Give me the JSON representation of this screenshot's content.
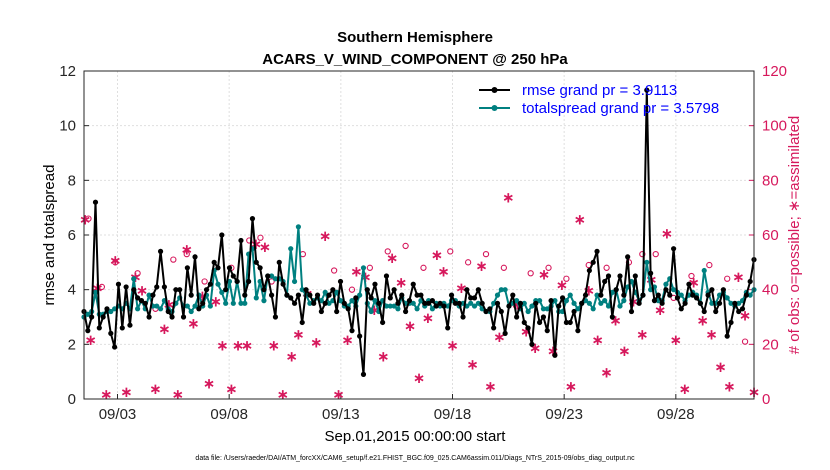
{
  "chart_data": {
    "type": "line",
    "title": "Southern Hemisphere",
    "subtitle": "ACARS_V_WIND_COMPONENT @ 250 hPa",
    "xlabel": "Sep.01,2015 00:00:00 start",
    "ylabel_left": "rmse and totalspread",
    "ylabel_right": "# of obs: o=possible; ∗=assimilated",
    "footnote": "data file: /Users/raeder/DAI/ATM_forcXX/CAM6_setup/f.e21.FHIST_BGC.f09_025.CAM6assim.011/Diags_NTrS_2015-09/obs_diag_output.nc",
    "xlim": [
      1.0,
      31.0
    ],
    "ylim_left": [
      0,
      12
    ],
    "ylim_right": [
      0,
      120
    ],
    "xticks": [
      2.5,
      7.5,
      12.5,
      17.5,
      22.5,
      27.5
    ],
    "xtick_labels": [
      "09/03",
      "09/08",
      "09/13",
      "09/18",
      "09/23",
      "09/28"
    ],
    "yticks_left": [
      0,
      2,
      4,
      6,
      8,
      10,
      12
    ],
    "yticks_right": [
      0,
      20,
      40,
      60,
      80,
      100,
      120
    ],
    "series": [
      {
        "name": "rmse grand pr = 3.9113",
        "axis": "left",
        "color": "#000000",
        "values": [
          3.2,
          2.5,
          3.0,
          7.2,
          2.6,
          3.0,
          3.3,
          2.4,
          1.9,
          4.2,
          2.6,
          4.1,
          2.7,
          4.0,
          3.7,
          3.6,
          3.5,
          3.0,
          3.8,
          4.1,
          5.4,
          4.1,
          3.2,
          3.0,
          4.0,
          4.0,
          3.0,
          4.8,
          3.8,
          5.2,
          3.3,
          3.5,
          4.0,
          4.2,
          5.0,
          4.8,
          6.0,
          4.0,
          4.8,
          4.5,
          4.3,
          5.8,
          3.8,
          4.3,
          6.6,
          5.0,
          4.8,
          4.0,
          4.5,
          3.8,
          3.0,
          5.0,
          4.2,
          3.8,
          3.7,
          3.5,
          3.8,
          2.8,
          4.0,
          3.8,
          3.5,
          3.8,
          3.2,
          3.5,
          3.8,
          4.0,
          3.2,
          4.3,
          3.5,
          3.3,
          2.5,
          3.7,
          2.3,
          0.9,
          4.0,
          3.7,
          4.2,
          3.5,
          2.8,
          4.5,
          3.7,
          4.0,
          3.5,
          3.8,
          3.2,
          3.6,
          4.2,
          3.8,
          3.8,
          3.5,
          3.5,
          3.6,
          3.4,
          3.5,
          3.4,
          2.6,
          3.8,
          3.5,
          3.5,
          3.0,
          4.0,
          3.7,
          3.7,
          4.0,
          3.5,
          3.2,
          3.3,
          2.6,
          3.5,
          3.2,
          2.4,
          3.4,
          3.8,
          3.0,
          3.5,
          2.8,
          2.6,
          2.0,
          3.5,
          2.8,
          3.0,
          2.5,
          3.6,
          1.6,
          3.4,
          3.7,
          2.8,
          2.8,
          3.2,
          2.5,
          3.5,
          3.8,
          4.7,
          5.0,
          5.4,
          3.8,
          4.3,
          4.5,
          3.0,
          4.0,
          4.5,
          3.8,
          5.2,
          3.2,
          4.5,
          3.5,
          3.8,
          11.3,
          4.6,
          3.6,
          3.8,
          3.5,
          4.0,
          3.8,
          5.5,
          3.7,
          3.3,
          3.5,
          4.2,
          3.8,
          3.7,
          3.5,
          3.2,
          3.8,
          4.0,
          3.2,
          3.5,
          4.0,
          2.3,
          2.8,
          3.5,
          3.2,
          3.3,
          3.8,
          4.3,
          5.1
        ]
      },
      {
        "name": "totalspread grand pr = 3.5798",
        "axis": "left",
        "color": "#008080",
        "values": [
          3.0,
          3.1,
          3.2,
          3.9,
          3.1,
          3.1,
          3.2,
          3.2,
          3.3,
          3.4,
          3.3,
          3.5,
          3.3,
          4.4,
          3.3,
          3.6,
          3.3,
          3.8,
          3.4,
          3.4,
          3.3,
          3.6,
          3.3,
          3.2,
          3.5,
          3.7,
          3.4,
          3.4,
          3.2,
          3.4,
          3.8,
          3.4,
          3.8,
          3.4,
          4.7,
          4.2,
          3.9,
          3.5,
          4.3,
          3.5,
          4.3,
          3.5,
          3.5,
          5.3,
          5.5,
          3.7,
          4.3,
          3.6,
          4.5,
          4.5,
          4.4,
          4.4,
          4.3,
          3.8,
          5.5,
          4.3,
          6.3,
          4.0,
          3.8,
          3.5,
          3.6,
          3.7,
          3.6,
          3.9,
          3.5,
          3.6,
          3.9,
          3.6,
          3.4,
          3.4,
          3.6,
          3.4,
          3.8,
          4.8,
          3.5,
          3.2,
          3.6,
          3.2,
          3.6,
          3.4,
          3.4,
          3.4,
          3.3,
          3.7,
          3.5,
          3.5,
          3.5,
          3.3,
          3.6,
          3.4,
          3.6,
          3.3,
          3.5,
          3.4,
          3.5,
          3.4,
          3.6,
          3.6,
          3.4,
          3.5,
          3.4,
          3.5,
          3.4,
          3.5,
          3.3,
          3.2,
          3.2,
          3.5,
          3.8,
          4.0,
          4.0,
          3.4,
          3.5,
          3.6,
          3.3,
          3.5,
          3.2,
          3.4,
          3.6,
          3.6,
          3.3,
          3.3,
          3.4,
          3.6,
          3.2,
          3.2,
          3.6,
          3.8,
          3.5,
          3.3,
          3.5,
          3.6,
          3.5,
          3.3,
          3.8,
          3.5,
          3.6,
          3.4,
          3.9,
          4.0,
          3.4,
          3.6,
          4.1,
          4.3,
          3.9,
          3.6,
          3.8,
          5.0,
          4.0,
          4.1,
          3.6,
          3.6,
          4.2,
          4.4,
          4.0,
          3.9,
          3.8,
          3.6,
          3.8,
          3.9,
          3.8,
          3.5,
          4.7,
          3.9,
          3.5,
          3.5,
          3.8,
          3.9,
          3.7,
          3.5,
          3.4,
          3.5,
          3.6,
          3.9,
          3.8,
          4.0
        ]
      }
    ],
    "obs_possible": {
      "name": "possible",
      "axis": "right",
      "color": "#d6185c",
      "marker": "o",
      "points": [
        [
          1.2,
          66
        ],
        [
          1.8,
          41
        ],
        [
          2.4,
          50
        ],
        [
          3.4,
          46
        ],
        [
          4.2,
          33
        ],
        [
          5.0,
          51
        ],
        [
          5.6,
          53
        ],
        [
          6.4,
          43
        ],
        [
          7.6,
          48
        ],
        [
          8.4,
          58
        ],
        [
          8.9,
          59
        ],
        [
          9.4,
          43
        ],
        [
          10.8,
          53
        ],
        [
          12.2,
          47
        ],
        [
          13.0,
          40
        ],
        [
          13.8,
          48
        ],
        [
          14.6,
          54
        ],
        [
          15.4,
          56
        ],
        [
          16.2,
          48
        ],
        [
          17.4,
          54
        ],
        [
          18.2,
          50
        ],
        [
          19.0,
          53
        ],
        [
          19.8,
          48
        ],
        [
          21.0,
          46
        ],
        [
          21.8,
          48
        ],
        [
          22.6,
          44
        ],
        [
          23.6,
          49
        ],
        [
          24.4,
          48
        ],
        [
          25.4,
          50
        ],
        [
          26.0,
          53
        ],
        [
          26.6,
          53
        ],
        [
          27.4,
          37
        ],
        [
          28.2,
          45
        ],
        [
          29.0,
          49
        ],
        [
          29.8,
          44
        ],
        [
          30.6,
          21
        ]
      ]
    },
    "obs_assimilated": {
      "name": "assimilated",
      "axis": "right",
      "color": "#d6185c",
      "marker": "*",
      "points": [
        [
          1.05,
          66
        ],
        [
          1.3,
          22
        ],
        [
          1.6,
          41
        ],
        [
          2.0,
          2
        ],
        [
          2.4,
          51
        ],
        [
          2.9,
          3
        ],
        [
          3.3,
          45
        ],
        [
          3.6,
          40
        ],
        [
          4.2,
          4
        ],
        [
          4.6,
          26
        ],
        [
          4.8,
          35
        ],
        [
          5.2,
          2
        ],
        [
          5.6,
          55
        ],
        [
          5.9,
          28
        ],
        [
          6.3,
          38
        ],
        [
          6.6,
          6
        ],
        [
          6.9,
          36
        ],
        [
          7.2,
          20
        ],
        [
          7.6,
          4
        ],
        [
          7.9,
          20
        ],
        [
          8.3,
          20
        ],
        [
          8.7,
          57
        ],
        [
          9.1,
          56
        ],
        [
          9.5,
          20
        ],
        [
          9.9,
          2
        ],
        [
          10.3,
          16
        ],
        [
          10.6,
          24
        ],
        [
          11.0,
          39
        ],
        [
          11.4,
          21
        ],
        [
          11.8,
          60
        ],
        [
          12.4,
          2
        ],
        [
          12.8,
          22
        ],
        [
          13.2,
          47
        ],
        [
          13.6,
          45
        ],
        [
          14.0,
          33
        ],
        [
          14.4,
          16
        ],
        [
          14.8,
          52
        ],
        [
          15.2,
          43
        ],
        [
          15.6,
          27
        ],
        [
          16.0,
          8
        ],
        [
          16.4,
          30
        ],
        [
          16.8,
          53
        ],
        [
          17.1,
          47
        ],
        [
          17.5,
          20
        ],
        [
          17.9,
          41
        ],
        [
          18.4,
          13
        ],
        [
          18.8,
          49
        ],
        [
          19.2,
          5
        ],
        [
          19.6,
          23
        ],
        [
          20.0,
          74
        ],
        [
          20.4,
          35
        ],
        [
          20.8,
          25
        ],
        [
          21.2,
          19
        ],
        [
          21.6,
          46
        ],
        [
          22.0,
          18
        ],
        [
          22.4,
          42
        ],
        [
          22.8,
          5
        ],
        [
          23.2,
          66
        ],
        [
          23.6,
          40
        ],
        [
          24.0,
          22
        ],
        [
          24.4,
          10
        ],
        [
          24.8,
          29
        ],
        [
          25.2,
          18
        ],
        [
          25.6,
          36
        ],
        [
          26.0,
          24
        ],
        [
          26.4,
          44
        ],
        [
          26.8,
          33
        ],
        [
          27.1,
          61
        ],
        [
          27.5,
          22
        ],
        [
          27.9,
          4
        ],
        [
          28.3,
          43
        ],
        [
          28.7,
          29
        ],
        [
          29.1,
          24
        ],
        [
          29.5,
          12
        ],
        [
          29.9,
          5
        ],
        [
          30.3,
          45
        ],
        [
          30.6,
          31
        ],
        [
          31.0,
          3
        ]
      ]
    }
  }
}
